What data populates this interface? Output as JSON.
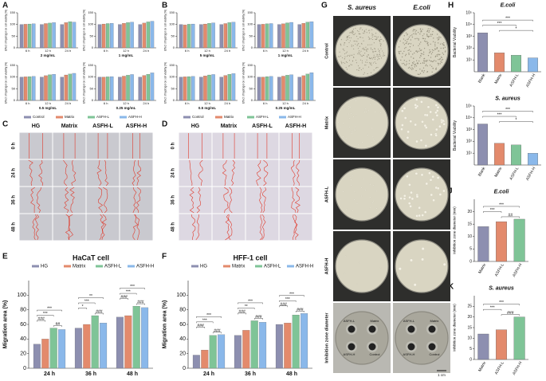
{
  "panel_labels": [
    "A",
    "B",
    "C",
    "D",
    "E",
    "F",
    "G",
    "H",
    "I",
    "J",
    "K"
  ],
  "chart_data": [
    {
      "type": "bar",
      "title": "2 mg/mL",
      "ylabel": "Effect of hydrogel on cell viability (%)",
      "categories": [
        "6 h",
        "12 h",
        "24 h"
      ],
      "ylim": [
        0,
        150
      ],
      "yticks": [
        0,
        50,
        100,
        150
      ],
      "series": [
        {
          "name": "Control",
          "color": "#8d8fb0",
          "values": [
            100,
            100,
            100
          ]
        },
        {
          "name": "Matrix",
          "color": "#e38a6c",
          "values": [
            101,
            104,
            108
          ]
        },
        {
          "name": "ASFH-L",
          "color": "#7fc497",
          "values": [
            102,
            106,
            112
          ]
        },
        {
          "name": "ASFH-H",
          "color": "#8ab8ea",
          "values": [
            103,
            108,
            110
          ]
        }
      ]
    },
    {
      "type": "bar",
      "title": "1 mg/mL",
      "ylabel": "Effect of hydrogel on cell viability (%)",
      "categories": [
        "6 h",
        "12 h",
        "24 h"
      ],
      "ylim": [
        0,
        150
      ],
      "yticks": [
        0,
        50,
        100,
        150
      ],
      "series": [
        {
          "name": "Control",
          "color": "#8d8fb0",
          "values": [
            100,
            100,
            100
          ]
        },
        {
          "name": "Matrix",
          "color": "#e38a6c",
          "values": [
            102,
            105,
            106
          ]
        },
        {
          "name": "ASFH-L",
          "color": "#7fc497",
          "values": [
            104,
            108,
            111
          ]
        },
        {
          "name": "ASFH-H",
          "color": "#8ab8ea",
          "values": [
            105,
            110,
            114
          ]
        }
      ]
    },
    {
      "type": "bar",
      "title": "0.5 mg/mL",
      "ylabel": "Effect of hydrogel on cell viability (%)",
      "categories": [
        "6 h",
        "12 h",
        "24 h"
      ],
      "ylim": [
        0,
        150
      ],
      "yticks": [
        0,
        50,
        100,
        150
      ],
      "series": [
        {
          "name": "Control",
          "color": "#8d8fb0",
          "values": [
            100,
            100,
            100
          ]
        },
        {
          "name": "Matrix",
          "color": "#e38a6c",
          "values": [
            101,
            106,
            109
          ]
        },
        {
          "name": "ASFH-L",
          "color": "#7fc497",
          "values": [
            102,
            110,
            113
          ]
        },
        {
          "name": "ASFH-H",
          "color": "#8ab8ea",
          "values": [
            103,
            112,
            116
          ]
        }
      ]
    },
    {
      "type": "bar",
      "title": "0.25 mg/mL",
      "ylabel": "Effect of hydrogel on cell viability (%)",
      "categories": [
        "6 h",
        "12 h",
        "24 h"
      ],
      "ylim": [
        0,
        150
      ],
      "yticks": [
        0,
        50,
        100,
        150
      ],
      "series": [
        {
          "name": "Control",
          "color": "#8d8fb0",
          "values": [
            100,
            100,
            100
          ]
        },
        {
          "name": "Matrix",
          "color": "#e38a6c",
          "values": [
            100,
            104,
            107
          ]
        },
        {
          "name": "ASFH-L",
          "color": "#7fc497",
          "values": [
            101,
            108,
            112
          ]
        },
        {
          "name": "ASFH-H",
          "color": "#8ab8ea",
          "values": [
            102,
            111,
            118
          ]
        }
      ]
    },
    {
      "type": "bar",
      "title": "5 mg/mL",
      "ylabel": "Effect of hydrogel on cell viability (%)",
      "categories": [
        "6 h",
        "12 h",
        "24 h"
      ],
      "ylim": [
        0,
        150
      ],
      "yticks": [
        0,
        50,
        100,
        150
      ],
      "series": [
        {
          "name": "Control",
          "color": "#8d8fb0",
          "values": [
            100,
            100,
            100
          ]
        },
        {
          "name": "Matrix",
          "color": "#e38a6c",
          "values": [
            98,
            102,
            104
          ]
        },
        {
          "name": "ASFH-L",
          "color": "#7fc497",
          "values": [
            101,
            105,
            108
          ]
        },
        {
          "name": "ASFH-H",
          "color": "#8ab8ea",
          "values": [
            102,
            107,
            110
          ]
        }
      ]
    },
    {
      "type": "bar",
      "title": "1 mg/mL",
      "ylabel": "Effect of hydrogel on cell viability (%)",
      "categories": [
        "6 h",
        "12 h",
        "24 h"
      ],
      "ylim": [
        0,
        150
      ],
      "yticks": [
        0,
        50,
        100,
        150
      ],
      "series": [
        {
          "name": "Control",
          "color": "#8d8fb0",
          "values": [
            100,
            100,
            100
          ]
        },
        {
          "name": "Matrix",
          "color": "#e38a6c",
          "values": [
            101,
            103,
            105
          ]
        },
        {
          "name": "ASFH-L",
          "color": "#7fc497",
          "values": [
            103,
            107,
            110
          ]
        },
        {
          "name": "ASFH-H",
          "color": "#8ab8ea",
          "values": [
            104,
            109,
            112
          ]
        }
      ]
    },
    {
      "type": "bar",
      "title": "0.5 mg/mL",
      "ylabel": "Effect of hydrogel on cell viability (%)",
      "categories": [
        "6 h",
        "12 h",
        "24 h"
      ],
      "ylim": [
        0,
        150
      ],
      "yticks": [
        0,
        50,
        100,
        150
      ],
      "series": [
        {
          "name": "Control",
          "color": "#8d8fb0",
          "values": [
            100,
            100,
            100
          ]
        },
        {
          "name": "Matrix",
          "color": "#e38a6c",
          "values": [
            101,
            105,
            107
          ]
        },
        {
          "name": "ASFH-L",
          "color": "#7fc497",
          "values": [
            102,
            109,
            112
          ]
        },
        {
          "name": "ASFH-H",
          "color": "#8ab8ea",
          "values": [
            103,
            111,
            115
          ]
        }
      ]
    },
    {
      "type": "bar",
      "title": "0.25 mg/mL",
      "ylabel": "Effect of hydrogel on cell viability (%)",
      "categories": [
        "6 h",
        "12 h",
        "24 h"
      ],
      "ylim": [
        0,
        150
      ],
      "yticks": [
        0,
        50,
        100,
        150
      ],
      "series": [
        {
          "name": "Control",
          "color": "#8d8fb0",
          "values": [
            100,
            100,
            100
          ]
        },
        {
          "name": "Matrix",
          "color": "#e38a6c",
          "values": [
            100,
            104,
            106
          ]
        },
        {
          "name": "ASFH-L",
          "color": "#7fc497",
          "values": [
            102,
            108,
            113
          ]
        },
        {
          "name": "ASFH-H",
          "color": "#8ab8ea",
          "values": [
            103,
            110,
            119
          ]
        }
      ]
    },
    {
      "type": "bar",
      "title": "HaCaT cell",
      "ylabel": "Migration area (%)",
      "categories": [
        "24 h",
        "36 h",
        "48 h"
      ],
      "ylim": [
        0,
        120
      ],
      "yticks": [
        0,
        20,
        40,
        60,
        80,
        100
      ],
      "series": [
        {
          "name": "HG",
          "color": "#8d8fb0",
          "values": [
            33,
            55,
            70
          ]
        },
        {
          "name": "Matrix",
          "color": "#e38a6c",
          "values": [
            40,
            60,
            72
          ]
        },
        {
          "name": "ASFH-L",
          "color": "#7fc497",
          "values": [
            55,
            72,
            85
          ]
        },
        {
          "name": "ASFH-H",
          "color": "#8ab8ea",
          "values": [
            53,
            62,
            83
          ]
        }
      ],
      "annotations": [
        [
          "***",
          "***",
          "###",
          "##"
        ],
        [
          "**",
          "***",
          "*",
          "###"
        ],
        [
          "***",
          "***",
          "###",
          "###"
        ]
      ]
    },
    {
      "type": "bar",
      "title": "HFF-1 cell",
      "ylabel": "Migration area (%)",
      "categories": [
        "24 h",
        "36 h",
        "48 h"
      ],
      "ylim": [
        0,
        120
      ],
      "yticks": [
        0,
        20,
        40,
        60,
        80,
        100
      ],
      "series": [
        {
          "name": "HG",
          "color": "#8d8fb0",
          "values": [
            18,
            45,
            60
          ]
        },
        {
          "name": "Matrix",
          "color": "#e38a6c",
          "values": [
            25,
            52,
            62
          ]
        },
        {
          "name": "ASFH-L",
          "color": "#7fc497",
          "values": [
            45,
            65,
            73
          ]
        },
        {
          "name": "ASFH-H",
          "color": "#8ab8ea",
          "values": [
            46,
            63,
            75
          ]
        }
      ],
      "annotations": [
        [
          "***",
          "***",
          "###",
          "###"
        ],
        [
          "***",
          "**",
          "###",
          "###"
        ],
        [
          "***",
          "***",
          "###",
          "###"
        ]
      ]
    },
    {
      "type": "bar",
      "title": "E.coli",
      "ylabel": "Bacterial Viability",
      "yscale": "log",
      "categories": [
        "Blank",
        "Matrix",
        "ASFH-L",
        "ASFH-H"
      ],
      "values": [
        2000,
        40,
        25,
        15
      ],
      "colors": [
        "#8d8fb0",
        "#e38a6c",
        "#7fc497",
        "#8ab8ea"
      ],
      "ylim": [
        1,
        100000
      ],
      "yticks": [
        {
          "value": 10,
          "label": "10¹"
        },
        {
          "value": 100,
          "label": "10²"
        },
        {
          "value": 1000,
          "label": "10³"
        },
        {
          "value": 10000,
          "label": "10⁴"
        },
        {
          "value": 100000,
          "label": "10⁵"
        }
      ],
      "annotations": [
        "***",
        "***",
        "*"
      ]
    },
    {
      "type": "bar",
      "title": "S. aureus",
      "ylabel": "Bacterial Viability",
      "yscale": "log",
      "categories": [
        "Blank",
        "Matrix",
        "ASFH-L",
        "ASFH-H"
      ],
      "values": [
        3000,
        70,
        50,
        10
      ],
      "colors": [
        "#8d8fb0",
        "#e38a6c",
        "#7fc497",
        "#8ab8ea"
      ],
      "ylim": [
        1,
        100000
      ],
      "yticks": [
        {
          "value": 10,
          "label": "10¹"
        },
        {
          "value": 100,
          "label": "10²"
        },
        {
          "value": 1000,
          "label": "10³"
        },
        {
          "value": 10000,
          "label": "10⁴"
        },
        {
          "value": 100000,
          "label": "10⁵"
        }
      ],
      "annotations": [
        "***",
        "***",
        "*"
      ]
    },
    {
      "type": "bar",
      "title": "E.coli",
      "ylabel": "Inhibition zone diameter (mm)",
      "categories": [
        "Matrix",
        "ASFH-L",
        "ASFH-H"
      ],
      "values": [
        14,
        16,
        17
      ],
      "colors": [
        "#8d8fb0",
        "#e38a6c",
        "#7fc497"
      ],
      "ylim": [
        0,
        25
      ],
      "yticks": [
        0,
        5,
        10,
        15,
        20
      ],
      "annotations": [
        "***",
        "***",
        "##"
      ]
    },
    {
      "type": "bar",
      "title": "S. aureus",
      "ylabel": "Inhibition zone diameter (mm)",
      "categories": [
        "Matrix",
        "ASFH-L",
        "ASFH-H"
      ],
      "values": [
        12,
        14,
        20
      ],
      "colors": [
        "#8d8fb0",
        "#e38a6c",
        "#7fc497"
      ],
      "ylim": [
        0,
        30
      ],
      "yticks": [
        0,
        5,
        10,
        15,
        20,
        25
      ],
      "annotations": [
        "***",
        "***",
        "###"
      ]
    }
  ],
  "micrographs": [
    {
      "columns": [
        "HG",
        "Matrix",
        "ASFH-L",
        "ASFH-H"
      ],
      "rows": [
        "0 h",
        "24 h",
        "36 h",
        "48 h"
      ]
    },
    {
      "columns": [
        "HG",
        "Matrix",
        "ASFH-L",
        "ASFH-H"
      ],
      "rows": [
        "0 h",
        "24 h",
        "36 h",
        "48 h"
      ]
    }
  ],
  "plates": {
    "columns": [
      "S. aureus",
      "E.coli"
    ],
    "rows": [
      "Control",
      "Matrix",
      "ASFH-L",
      "ASFH-H",
      "Inhibition zone diameter"
    ],
    "disc_labels": [
      [
        "ASFH-L",
        "Matrix",
        "ASFH-H",
        "Control"
      ],
      [
        "ASFH-L",
        "Matrix",
        "ASFH-H",
        "Control"
      ]
    ],
    "scale": "1 cm"
  }
}
